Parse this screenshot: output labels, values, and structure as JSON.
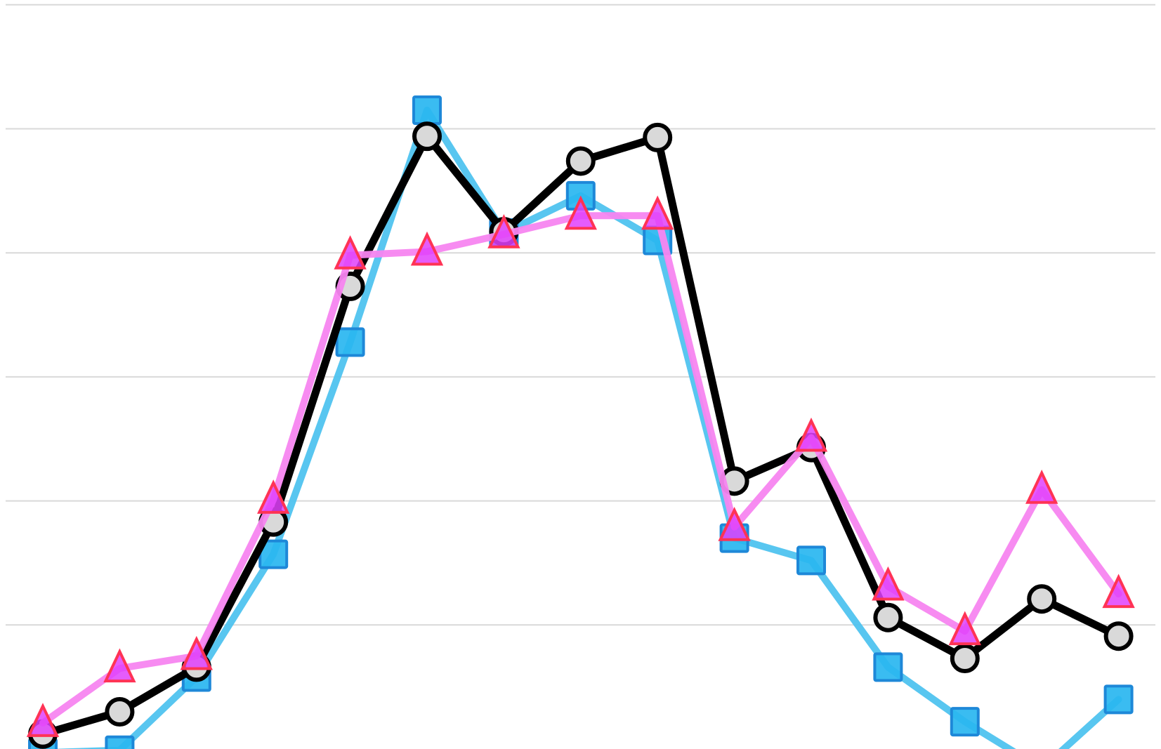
{
  "chart_data": {
    "type": "line",
    "title": "",
    "xlabel": "",
    "ylabel": "",
    "grid": true,
    "ylim": [
      0,
      6
    ],
    "gridlines": [
      1,
      2,
      3,
      4,
      5,
      6
    ],
    "x": [
      1,
      2,
      3,
      4,
      5,
      6,
      7,
      8,
      9,
      10,
      11,
      12,
      13,
      14,
      15
    ],
    "series": [
      {
        "key": "circle",
        "marker": "circle",
        "line_color": "#000000",
        "marker_fill": "#d9d9d9",
        "marker_stroke": "#000000",
        "values": [
          0.12,
          0.3,
          0.66,
          1.83,
          3.73,
          4.94,
          4.17,
          4.74,
          4.93,
          2.16,
          2.43,
          1.06,
          0.73,
          1.21,
          0.91
        ]
      },
      {
        "key": "square",
        "marker": "square",
        "line_color": "#4fc3ef",
        "marker_fill": "#29b6f0",
        "marker_stroke": "#1e88d8",
        "values": [
          -0.03,
          -0.01,
          0.58,
          1.57,
          3.28,
          5.15,
          4.16,
          4.46,
          4.1,
          1.7,
          1.52,
          0.66,
          0.22,
          -0.16,
          0.4
        ]
      },
      {
        "key": "triangle",
        "marker": "triangle",
        "line_color": "#f785f0",
        "marker_fill": "#e040fb",
        "marker_stroke": "#ff3355",
        "values": [
          0.21,
          0.65,
          0.75,
          2.01,
          3.98,
          4.01,
          4.15,
          4.3,
          4.3,
          1.79,
          2.51,
          1.31,
          0.95,
          2.09,
          1.25
        ]
      }
    ]
  }
}
